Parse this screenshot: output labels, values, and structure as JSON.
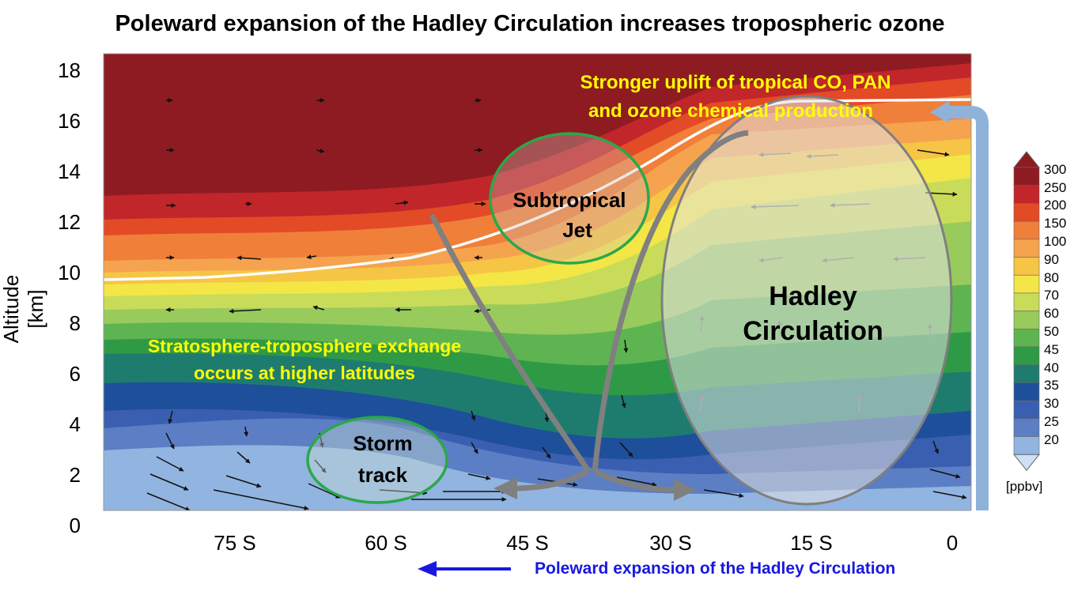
{
  "title": "Poleward expansion of the Hadley Circulation increases tropospheric ozone",
  "y_axis": {
    "label": "Altitude [km]",
    "ticks": [
      "18",
      "16",
      "14",
      "12",
      "10",
      "8",
      "6",
      "4",
      "2",
      "0"
    ]
  },
  "x_axis": {
    "ticks": [
      "75 S",
      "60 S",
      "45 S",
      "30 S",
      "15 S",
      "0"
    ]
  },
  "annotations": {
    "uplift_line1": "Stronger uplift of tropical CO, PAN",
    "uplift_line2": "and ozone chemical production",
    "ste_line1": "Stratosphere-troposphere exchange",
    "ste_line2": "occurs at higher latitudes",
    "jet_line1": "Subtropical",
    "jet_line2": "Jet",
    "storm_line1": "Storm",
    "storm_line2": "track",
    "hadley_line1": "Hadley",
    "hadley_line2": "Circulation"
  },
  "colorbar": {
    "ticks": [
      "300",
      "250",
      "200",
      "150",
      "100",
      "90",
      "80",
      "70",
      "60",
      "50",
      "45",
      "40",
      "35",
      "30",
      "25",
      "20"
    ],
    "colors": [
      "#8e1b21",
      "#c0262a",
      "#e34a26",
      "#f07f3a",
      "#f5a34e",
      "#f6c545",
      "#f3e646",
      "#c9dc5a",
      "#98cb5c",
      "#5fb452",
      "#2f9a45",
      "#1e7c6f",
      "#1e4f9a",
      "#3b5fb0",
      "#5b7ec4",
      "#92b4e0"
    ],
    "unit": "[ppbv]"
  },
  "footer": {
    "text": "Poleward expansion of the Hadley Circulation"
  },
  "colors": {
    "annotation_yellow": "#ffff00",
    "ellipse_green": "#2aa84a",
    "arrow_blue": "#1818e0",
    "circulation_gray": "#7f7f7f"
  }
}
